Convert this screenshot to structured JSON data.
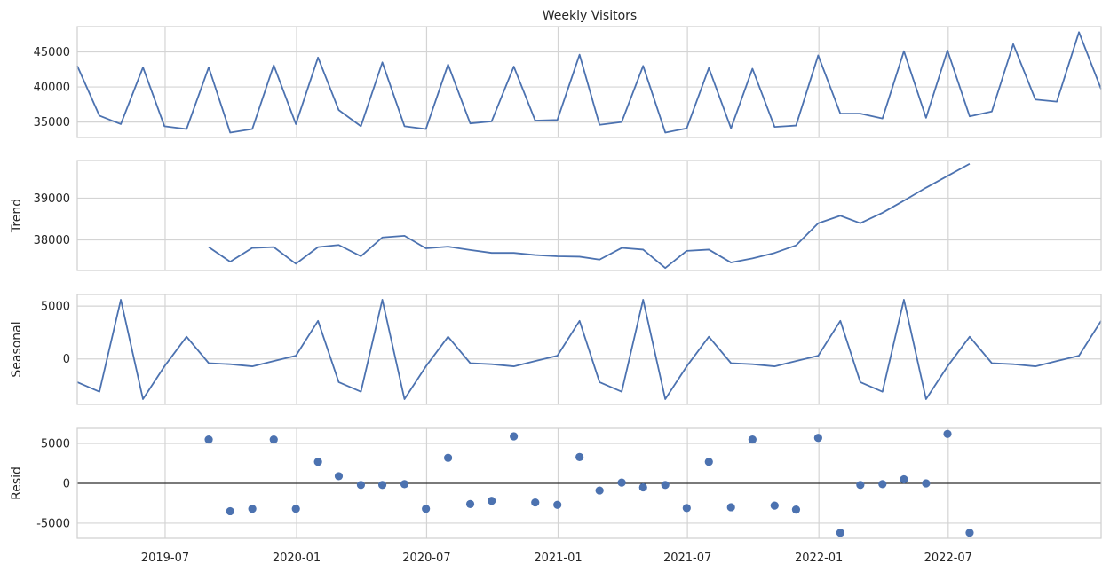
{
  "colors": {
    "series": "#4c72b0",
    "grid": "#d4d4d4",
    "frame": "#cfcfcf",
    "zero_line": "#000000"
  },
  "chart_data": {
    "type": "line",
    "title": "Weekly Visitors",
    "x_dates": [
      "2019-02-28",
      "2019-03-31",
      "2019-04-30",
      "2019-05-31",
      "2019-06-30",
      "2019-07-31",
      "2019-08-31",
      "2019-09-30",
      "2019-10-31",
      "2019-11-30",
      "2019-12-31",
      "2020-01-31",
      "2020-02-29",
      "2020-03-31",
      "2020-04-30",
      "2020-05-31",
      "2020-06-30",
      "2020-07-31",
      "2020-08-31",
      "2020-09-30",
      "2020-10-31",
      "2020-11-30",
      "2020-12-31",
      "2021-01-31",
      "2021-02-28",
      "2021-03-31",
      "2021-04-30",
      "2021-05-31",
      "2021-06-30",
      "2021-07-31",
      "2021-08-31",
      "2021-09-30",
      "2021-10-31",
      "2021-11-30",
      "2021-12-31",
      "2022-01-31",
      "2022-02-28",
      "2022-03-31",
      "2022-04-30",
      "2022-05-31",
      "2022-06-30",
      "2022-07-31",
      "2022-08-31",
      "2022-09-30",
      "2022-10-31",
      "2022-11-30",
      "2022-12-31",
      "2023-01-31"
    ],
    "xlim": [
      "2019-02-28",
      "2023-01-31"
    ],
    "x_ticks": [
      "2019-07",
      "2020-01",
      "2020-07",
      "2021-01",
      "2021-07",
      "2022-01",
      "2022-07"
    ],
    "panels": [
      {
        "name": "observed",
        "ylabel": "",
        "ylim": [
          32800,
          48600
        ],
        "y_ticks": [
          35000,
          40000,
          45000
        ],
        "kind": "line",
        "values": [
          43000,
          35900,
          34700,
          42800,
          34400,
          34000,
          42800,
          33500,
          34000,
          43100,
          34700,
          44200,
          36700,
          34400,
          43500,
          34400,
          34000,
          43200,
          34800,
          35100,
          42900,
          35200,
          35300,
          44600,
          34600,
          35000,
          43000,
          33500,
          34100,
          42700,
          34100,
          42600,
          34300,
          34500,
          44500,
          36200,
          36200,
          35500,
          45100,
          35600,
          45200,
          35800,
          36500,
          46100,
          38200,
          37900,
          47800,
          39700
        ]
      },
      {
        "name": "trend",
        "ylabel": "Trend",
        "ylim": [
          37270,
          39900
        ],
        "y_ticks": [
          38000,
          39000
        ],
        "kind": "line",
        "values": [
          null,
          null,
          null,
          null,
          null,
          null,
          37830,
          37480,
          37810,
          37830,
          37430,
          37830,
          37880,
          37610,
          38060,
          38100,
          37800,
          37840,
          37760,
          37690,
          37690,
          37640,
          37610,
          37600,
          37530,
          37810,
          37770,
          37330,
          37740,
          37770,
          37460,
          37560,
          37690,
          37870,
          38400,
          38580,
          38400,
          38650,
          38940,
          39250,
          39530,
          39820,
          null,
          null,
          null,
          null,
          null,
          null
        ]
      },
      {
        "name": "seasonal",
        "ylabel": "Seasonal",
        "ylim": [
          -4300,
          6100
        ],
        "y_ticks": [
          0,
          5000
        ],
        "kind": "line",
        "values": [
          -2200,
          -3100,
          5600,
          -3800,
          -700,
          2100,
          -400,
          -500,
          -700,
          -200,
          300,
          3600,
          -2200,
          -3100,
          5600,
          -3800,
          -700,
          2100,
          -400,
          -500,
          -700,
          -200,
          300,
          3600,
          -2200,
          -3100,
          5600,
          -3800,
          -700,
          2100,
          -400,
          -500,
          -700,
          -200,
          300,
          3600,
          -2200,
          -3100,
          5600,
          -3800,
          -700,
          2100,
          -400,
          -500,
          -700,
          -200,
          300,
          3600
        ]
      },
      {
        "name": "resid",
        "ylabel": "Resid",
        "ylim": [
          -6900,
          6900
        ],
        "y_ticks": [
          -5000,
          0,
          5000
        ],
        "kind": "scatter",
        "zero_line": true,
        "values": [
          null,
          null,
          null,
          null,
          null,
          null,
          5500,
          -3500,
          -3200,
          5500,
          -3200,
          2700,
          900,
          -200,
          -200,
          -100,
          -3200,
          3200,
          -2600,
          -2200,
          5900,
          -2400,
          -2700,
          3300,
          -900,
          100,
          -500,
          -200,
          -3100,
          2700,
          -3000,
          5500,
          -2800,
          -3300,
          5700,
          -6200,
          -200,
          -100,
          500,
          0,
          6200,
          -6200,
          null,
          null,
          null,
          null,
          null,
          null
        ]
      }
    ],
    "grid": true
  }
}
